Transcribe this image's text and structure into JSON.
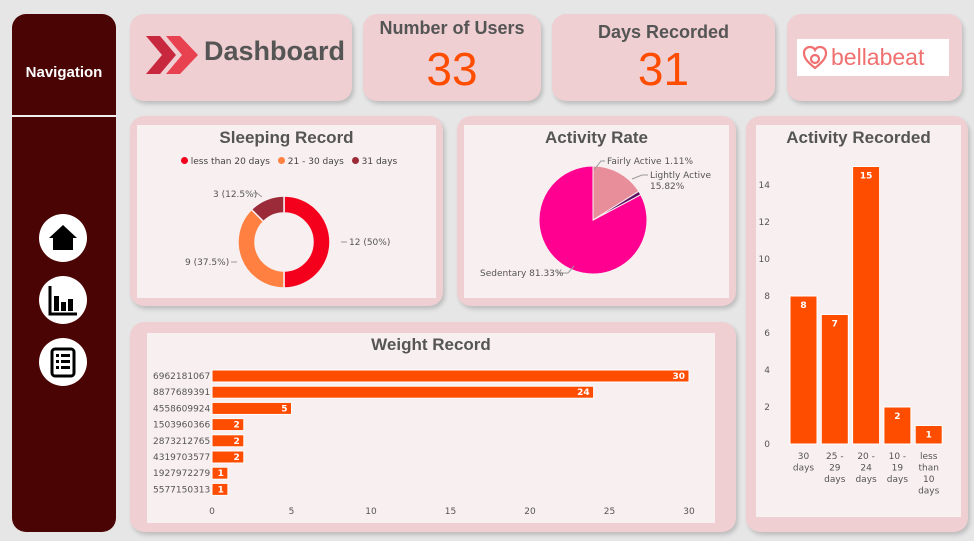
{
  "nav": {
    "title": "Navigation",
    "buttons": [
      {
        "icon": "home-icon"
      },
      {
        "icon": "bar-chart-icon"
      },
      {
        "icon": "list-icon"
      }
    ]
  },
  "header": {
    "title": "Dashboard",
    "logo_text": "bellabeat"
  },
  "kpis": {
    "users_label": "Number of Users",
    "users_value": "33",
    "days_label": "Days Recorded",
    "days_value": "31"
  },
  "colors": {
    "accent": "#ff4d00",
    "card": "#efcfd2",
    "nav": "#4a0404",
    "sleep_red": "#f5001c",
    "sleep_orange": "#ff8040",
    "sleep_dark": "#9b2b38",
    "sedentary": "#ff0090",
    "lightly": "#e88e9a",
    "fairly": "#5a1060"
  },
  "sleeping": {
    "title": "Sleeping Record",
    "legend": [
      "less than 20 days",
      "21 - 30 days",
      "31 days"
    ],
    "labels": [
      "12 (50%)",
      "9 (37.5%)",
      "3 (12.5%)"
    ]
  },
  "activity_rate": {
    "title": "Activity Rate",
    "labels": {
      "fairly": "Fairly Active 1.11%",
      "lightly_1": "Lightly Active",
      "lightly_2": "15.82%",
      "sedentary": "Sedentary 81.33%"
    }
  },
  "weight": {
    "title": "Weight Record",
    "x_ticks": [
      "0",
      "5",
      "10",
      "15",
      "20",
      "25",
      "30"
    ]
  },
  "activity_recorded": {
    "title": "Activity Recorded",
    "y_ticks": [
      "0",
      "2",
      "4",
      "6",
      "8",
      "10",
      "12",
      "14"
    ]
  },
  "chart_data": [
    {
      "type": "pie",
      "title": "Sleeping Record",
      "categories": [
        "less than 20 days",
        "21 - 30 days",
        "31 days"
      ],
      "values": [
        12,
        9,
        3
      ],
      "legend": "top"
    },
    {
      "type": "pie",
      "title": "Activity Rate",
      "categories": [
        "Sedentary",
        "Lightly Active",
        "Fairly Active"
      ],
      "values": [
        81.33,
        15.82,
        1.11
      ]
    },
    {
      "type": "bar",
      "title": "Weight Record",
      "orientation": "horizontal",
      "categories": [
        "6962181067",
        "8877689391",
        "4558609924",
        "1503960366",
        "2873212765",
        "4319703577",
        "1927972279",
        "5577150313"
      ],
      "values": [
        30,
        24,
        5,
        2,
        2,
        2,
        1,
        1
      ],
      "xlim": [
        0,
        30
      ]
    },
    {
      "type": "bar",
      "title": "Activity Recorded",
      "categories": [
        [
          "30",
          "days"
        ],
        [
          "25 -",
          "29",
          "days"
        ],
        [
          "20 -",
          "24",
          "days"
        ],
        [
          "10 -",
          "19",
          "days"
        ],
        [
          "less",
          "than",
          "10",
          "days"
        ]
      ],
      "values": [
        8,
        7,
        15,
        2,
        1
      ],
      "ylim": [
        0,
        15
      ]
    }
  ]
}
